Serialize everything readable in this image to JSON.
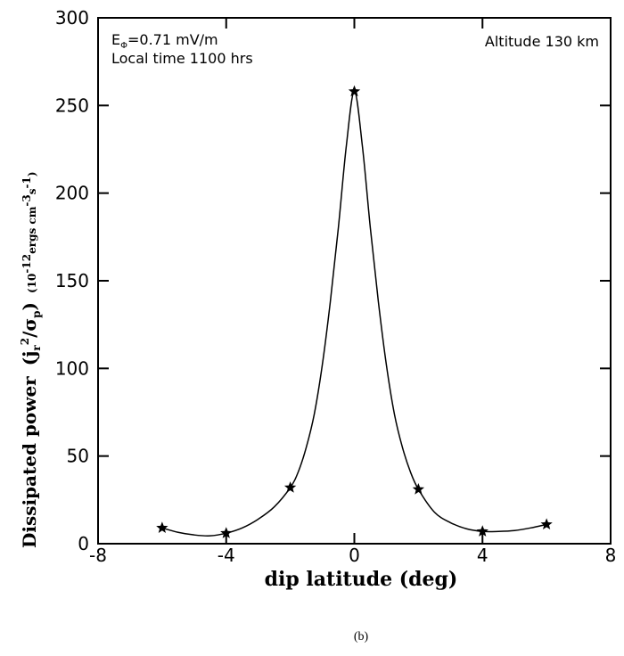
{
  "chart_data": {
    "type": "line",
    "xlabel": "dip latitude (deg)",
    "ylabel": {
      "main": "Dissipated power",
      "ratio_open": "(j",
      "ratio_sub_r": "r",
      "ratio_sup_2": "2",
      "ratio_mid": "/σ",
      "ratio_sub_p": "p",
      "ratio_close": ")",
      "units_open": "(10",
      "units_exp1": "-12",
      "units_mid1": "ergs cm",
      "units_exp2": "-3",
      "units_mid2": "s",
      "units_exp3": "-1",
      "units_close": ")"
    },
    "xlim": [
      -8,
      8
    ],
    "ylim": [
      0,
      300
    ],
    "xticks": [
      "-8",
      "-4",
      "0",
      "4",
      "8"
    ],
    "yticks": [
      "0",
      "50",
      "100",
      "150",
      "200",
      "250",
      "300"
    ],
    "xtick_values": [
      -8,
      -4,
      0,
      4,
      8
    ],
    "ytick_values": [
      0,
      50,
      100,
      150,
      200,
      250,
      300
    ],
    "series": [
      {
        "x": [
          -6,
          -4,
          -2,
          0,
          2,
          4,
          6
        ],
        "y": [
          9,
          6,
          32,
          258,
          31,
          7,
          11
        ],
        "marker": "star",
        "color": "#000000"
      }
    ],
    "curve": {
      "x": [
        -6,
        -5.5,
        -5,
        -4.5,
        -4,
        -3.5,
        -3,
        -2.5,
        -2,
        -1.75,
        -1.5,
        -1.25,
        -1,
        -0.75,
        -0.5,
        -0.25,
        0,
        0.25,
        0.5,
        0.75,
        1,
        1.25,
        1.5,
        1.75,
        2,
        2.5,
        3,
        3.5,
        4,
        4.5,
        5,
        5.5,
        6
      ],
      "y": [
        9,
        6.5,
        5,
        4.5,
        6,
        9,
        14,
        21,
        32,
        41,
        55,
        74,
        102,
        138,
        180,
        227,
        258,
        227,
        180,
        138,
        102,
        74,
        55,
        41,
        31,
        18,
        12,
        8.5,
        7,
        7,
        7.5,
        9,
        11
      ]
    },
    "annotations": {
      "efield_prefix": "E",
      "efield_sub": "Φ",
      "efield_value": "=0.71  mV/m",
      "local_time": "Local  time  1100  hrs",
      "altitude": "Altitude  130  km"
    },
    "caption": "(b)",
    "grid": false
  }
}
